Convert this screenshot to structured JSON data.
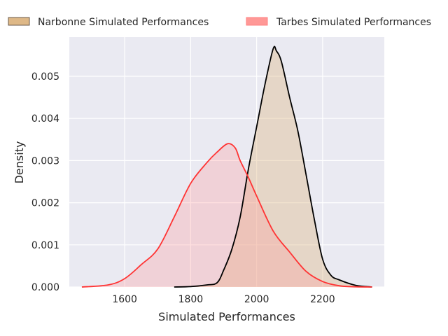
{
  "chart_data": {
    "type": "area",
    "title": "",
    "xlabel": "Simulated Performances",
    "ylabel": "Density",
    "xlim": [
      1432,
      2387
    ],
    "ylim": [
      0,
      0.00593
    ],
    "x_ticks": [
      1600,
      1800,
      2000,
      2200
    ],
    "x_tick_labels": [
      "1600",
      "1800",
      "2000",
      "2200"
    ],
    "y_ticks": [
      0,
      0.001,
      0.002,
      0.003,
      0.004,
      0.005
    ],
    "y_tick_labels": [
      "0.000",
      "0.001",
      "0.002",
      "0.003",
      "0.004",
      "0.005"
    ],
    "grid": true,
    "legend_placement": "top (above plot, horizontal)",
    "series": [
      {
        "name": "Narbonne Simulated Performances",
        "line_color": "#000000",
        "fill_color": "#deb887",
        "x": [
          1750,
          1800,
          1850,
          1880,
          1900,
          1925,
          1950,
          1975,
          2000,
          2025,
          2050,
          2060,
          2075,
          2100,
          2125,
          2150,
          2175,
          2200,
          2225,
          2250,
          2300,
          2350
        ],
        "y": [
          0,
          1e-05,
          5e-05,
          0.0001,
          0.0004,
          0.0009,
          0.00166,
          0.0028,
          0.0038,
          0.0048,
          0.00565,
          0.0056,
          0.00535,
          0.0045,
          0.0037,
          0.00266,
          0.0016,
          0.00066,
          0.00028,
          0.00017,
          4e-05,
          0
        ]
      },
      {
        "name": "Tarbes Simulated Performances",
        "line_color": "#ff3333",
        "fill_color": "#ff9999",
        "x": [
          1470,
          1550,
          1600,
          1650,
          1700,
          1750,
          1800,
          1850,
          1880,
          1912,
          1935,
          1950,
          1975,
          2000,
          2050,
          2100,
          2150,
          2200,
          2250,
          2300,
          2350
        ],
        "y": [
          0,
          5e-05,
          0.0002,
          0.00053,
          0.0009,
          0.00166,
          0.00246,
          0.00296,
          0.0032,
          0.0034,
          0.0033,
          0.003,
          0.0026,
          0.00216,
          0.00133,
          0.00083,
          0.00037,
          0.00013,
          3e-05,
          5e-06,
          0
        ]
      }
    ]
  }
}
